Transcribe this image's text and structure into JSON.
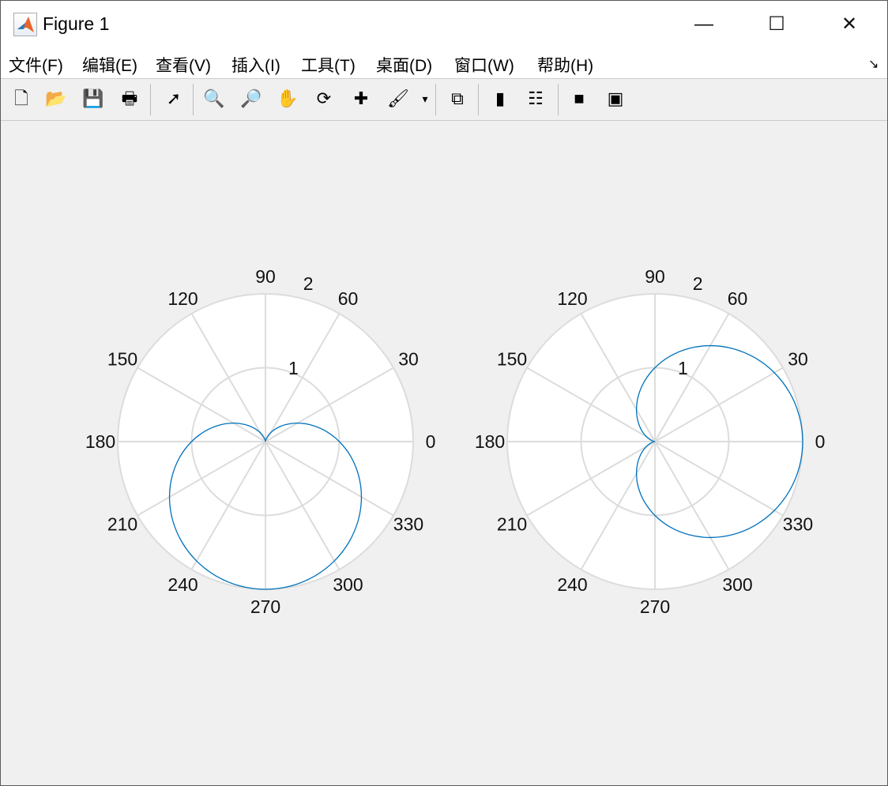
{
  "window": {
    "title": "Figure 1",
    "minimize": "—",
    "maximize": "☐",
    "close": "✕"
  },
  "menu": [
    "文件(F)",
    "编辑(E)",
    "查看(V)",
    "插入(I)",
    "工具(T)",
    "桌面(D)",
    "窗口(W)",
    "帮助(H)"
  ],
  "toolbar": [
    {
      "icon": "new-figure-icon",
      "glyph": "🗋"
    },
    {
      "icon": "open-icon",
      "glyph": "📂"
    },
    {
      "icon": "save-icon",
      "glyph": "💾"
    },
    {
      "icon": "print-icon",
      "glyph": "🖶"
    },
    {
      "icon": "select-arrow-icon",
      "glyph": "➚"
    },
    {
      "icon": "zoom-in-icon",
      "glyph": "🔍"
    },
    {
      "icon": "zoom-out-icon",
      "glyph": "🔎"
    },
    {
      "icon": "pan-hand-icon",
      "glyph": "✋"
    },
    {
      "icon": "rotate-3d-icon",
      "glyph": "⟳"
    },
    {
      "icon": "data-cursor-icon",
      "glyph": "✚"
    },
    {
      "icon": "brush-icon",
      "glyph": "🖌"
    },
    {
      "icon": "brush-dropdown-icon",
      "glyph": "▾"
    },
    {
      "icon": "link-plot-icon",
      "glyph": "⧉"
    },
    {
      "icon": "colorbar-icon",
      "glyph": "▮"
    },
    {
      "icon": "legend-icon",
      "glyph": "☷"
    },
    {
      "icon": "hide-plot-tools-icon",
      "glyph": "■"
    },
    {
      "icon": "show-plot-tools-icon",
      "glyph": "▣"
    }
  ],
  "chart_data": [
    {
      "type": "line",
      "coordinate": "polar",
      "line_color": "#0072BD",
      "grid_color": "#dcdcdc",
      "theta_ticks": [
        "0",
        "30",
        "60",
        "90",
        "120",
        "150",
        "180",
        "210",
        "240",
        "270",
        "300",
        "330"
      ],
      "r_ticks": [
        "1",
        "2"
      ],
      "rlim": [
        0,
        2
      ],
      "theta_deg": [
        0,
        10,
        20,
        30,
        40,
        50,
        60,
        70,
        80,
        90,
        100,
        110,
        120,
        130,
        140,
        150,
        160,
        170,
        180,
        190,
        200,
        210,
        220,
        230,
        240,
        250,
        260,
        270,
        280,
        290,
        300,
        310,
        320,
        330,
        340,
        350,
        360
      ],
      "r": [
        1,
        0.826,
        0.658,
        0.5,
        0.357,
        0.234,
        0.134,
        0.06,
        0.015,
        0,
        0.015,
        0.06,
        0.134,
        0.234,
        0.357,
        0.5,
        0.658,
        0.826,
        1,
        1.174,
        1.342,
        1.5,
        1.643,
        1.766,
        1.866,
        1.94,
        1.985,
        2,
        1.985,
        1.94,
        1.866,
        1.766,
        1.643,
        1.5,
        1.342,
        1.174,
        1
      ]
    },
    {
      "type": "line",
      "coordinate": "polar",
      "line_color": "#0072BD",
      "grid_color": "#dcdcdc",
      "theta_ticks": [
        "0",
        "30",
        "60",
        "90",
        "120",
        "150",
        "180",
        "210",
        "240",
        "270",
        "300",
        "330"
      ],
      "r_ticks": [
        "1",
        "2"
      ],
      "rlim": [
        0,
        2
      ],
      "theta_deg": [
        0,
        10,
        20,
        30,
        40,
        50,
        60,
        70,
        80,
        90,
        100,
        110,
        120,
        130,
        140,
        150,
        160,
        170,
        180,
        190,
        200,
        210,
        220,
        230,
        240,
        250,
        260,
        270,
        280,
        290,
        300,
        310,
        320,
        330,
        340,
        350,
        360
      ],
      "r": [
        2,
        1.985,
        1.94,
        1.866,
        1.766,
        1.643,
        1.5,
        1.342,
        1.174,
        1,
        0.826,
        0.658,
        0.5,
        0.357,
        0.234,
        0.134,
        0.06,
        0.015,
        0,
        0.015,
        0.06,
        0.134,
        0.234,
        0.357,
        0.5,
        0.658,
        0.826,
        1,
        1.174,
        1.342,
        1.5,
        1.643,
        1.766,
        1.866,
        1.94,
        1.985,
        2
      ]
    }
  ]
}
